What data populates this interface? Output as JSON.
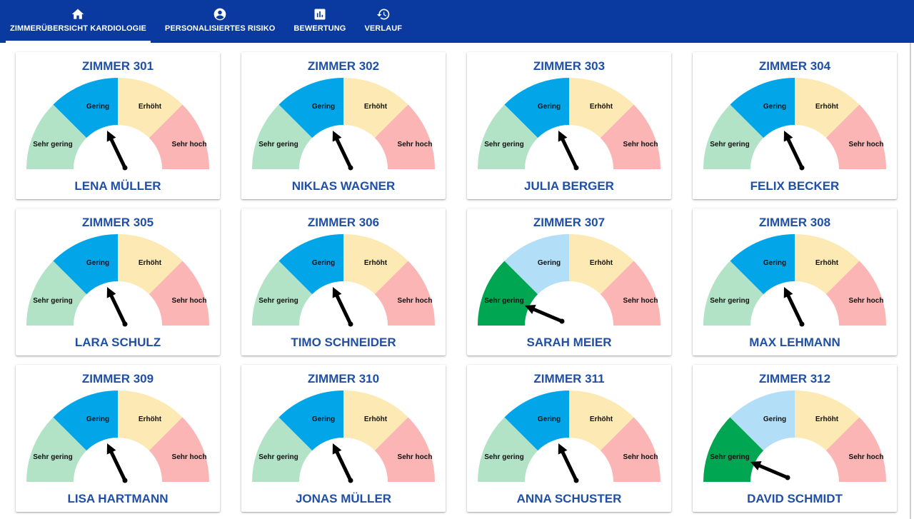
{
  "nav": {
    "tabs": [
      {
        "label": "ZIMMERÜBERSICHT KARDIOLOGIE",
        "icon": "home-icon",
        "active": true
      },
      {
        "label": "PERSONALISIERTES RISIKO",
        "icon": "account-circle-icon",
        "active": false
      },
      {
        "label": "BEWERTUNG",
        "icon": "bar-chart-icon",
        "active": false
      },
      {
        "label": "VERLAUF",
        "icon": "history-icon",
        "active": false
      }
    ]
  },
  "gauge_labels": {
    "very_low": "Sehr gering",
    "low": "Gering",
    "elevated": "Erhöht",
    "very_high": "Sehr hoch"
  },
  "colors": {
    "header": "#0a3aa0",
    "title_text": "#1f4fa6",
    "very_low_dim": "#b2e3c7",
    "very_low_active": "#00a651",
    "low_dim": "#b3def7",
    "low_active": "#02a6e8",
    "elevated": "#fde9b3",
    "very_high": "#fbb5b5"
  },
  "rooms": [
    {
      "room": "ZIMMER 301",
      "patient": "LENA MÜLLER",
      "risk": "Gering"
    },
    {
      "room": "ZIMMER 302",
      "patient": "NIKLAS WAGNER",
      "risk": "Gering"
    },
    {
      "room": "ZIMMER 303",
      "patient": "JULIA BERGER",
      "risk": "Gering"
    },
    {
      "room": "ZIMMER 304",
      "patient": "FELIX BECKER",
      "risk": "Gering"
    },
    {
      "room": "ZIMMER 305",
      "patient": "LARA SCHULZ",
      "risk": "Gering"
    },
    {
      "room": "ZIMMER 306",
      "patient": "TIMO SCHNEIDER",
      "risk": "Gering"
    },
    {
      "room": "ZIMMER 307",
      "patient": "SARAH MEIER",
      "risk": "Sehr gering"
    },
    {
      "room": "ZIMMER 308",
      "patient": "MAX LEHMANN",
      "risk": "Gering"
    },
    {
      "room": "ZIMMER 309",
      "patient": "LISA HARTMANN",
      "risk": "Gering"
    },
    {
      "room": "ZIMMER 310",
      "patient": "JONAS MÜLLER",
      "risk": "Gering"
    },
    {
      "room": "ZIMMER 311",
      "patient": "ANNA SCHUSTER",
      "risk": "Gering"
    },
    {
      "room": "ZIMMER 312",
      "patient": "DAVID SCHMIDT",
      "risk": "Sehr gering"
    }
  ]
}
